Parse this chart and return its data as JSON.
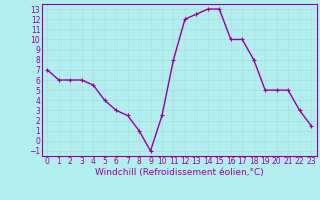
{
  "x": [
    0,
    1,
    2,
    3,
    4,
    5,
    6,
    7,
    8,
    9,
    10,
    11,
    12,
    13,
    14,
    15,
    16,
    17,
    18,
    19,
    20,
    21,
    22,
    23
  ],
  "y": [
    7,
    6,
    6,
    6,
    5.5,
    4,
    3,
    2.5,
    1,
    -1,
    2.5,
    8,
    12,
    12.5,
    13,
    13,
    10,
    10,
    8,
    5,
    5,
    5,
    3,
    1.5
  ],
  "line_color": "#990099",
  "marker_color": "#990099",
  "bg_color": "#b2eeee",
  "grid_color": "#aadddd",
  "xlabel": "Windchill (Refroidissement éolien,°C)",
  "xlabel_color": "#990099",
  "ylim": [
    -1.5,
    13.5
  ],
  "xlim": [
    -0.5,
    23.5
  ],
  "yticks": [
    -1,
    0,
    1,
    2,
    3,
    4,
    5,
    6,
    7,
    8,
    9,
    10,
    11,
    12,
    13
  ],
  "xticks": [
    0,
    1,
    2,
    3,
    4,
    5,
    6,
    7,
    8,
    9,
    10,
    11,
    12,
    13,
    14,
    15,
    16,
    17,
    18,
    19,
    20,
    21,
    22,
    23
  ],
  "tick_label_color": "#990099",
  "tick_label_fontsize": 5.5,
  "xlabel_fontsize": 6.5,
  "line_width": 1.0,
  "marker_size": 2.5,
  "marker_style": "+"
}
